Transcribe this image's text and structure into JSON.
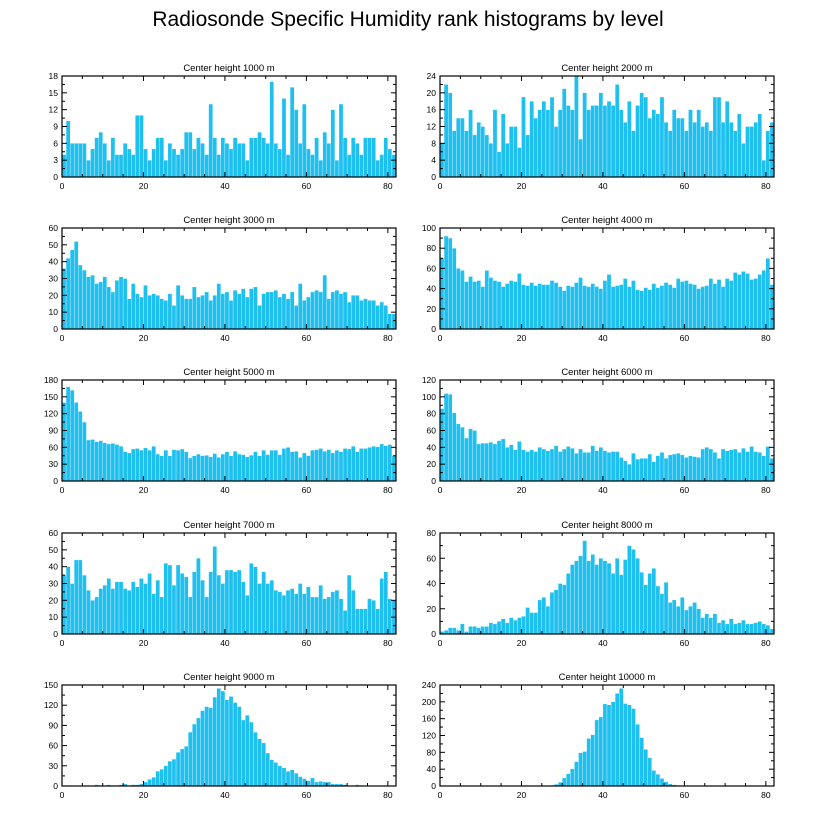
{
  "title": "Radiosonde Specific Humidity rank histograms by level",
  "colors": {
    "bar": "#1ec0f0",
    "axis": "#000000"
  },
  "chart_data": [
    {
      "type": "bar",
      "title": "Center height 1000 m",
      "x": "0..81",
      "xticks": [
        0,
        20,
        40,
        60,
        80
      ],
      "ylim": [
        0,
        18
      ],
      "yticks": [
        0,
        3,
        6,
        9,
        12,
        15,
        18
      ],
      "values": [
        4,
        10,
        6,
        6,
        6,
        6,
        3,
        5,
        7,
        8,
        6,
        3,
        7,
        4,
        4,
        6,
        5,
        4,
        11,
        11,
        5,
        3,
        5,
        7,
        7,
        3,
        6,
        5,
        4,
        5,
        8,
        8,
        5,
        7,
        6,
        4,
        13,
        7,
        4,
        7,
        6,
        5,
        7,
        6,
        6,
        3,
        7,
        7,
        8,
        7,
        6,
        17,
        6,
        5,
        14,
        4,
        16,
        12,
        6,
        13,
        5,
        4,
        7,
        3,
        8,
        6,
        12,
        3,
        13,
        7,
        4,
        7,
        6,
        4,
        7,
        7,
        7,
        3,
        4,
        7,
        5,
        4
      ]
    },
    {
      "type": "bar",
      "title": "Center height 2000 m",
      "x": "0..81",
      "xticks": [
        0,
        20,
        40,
        60,
        80
      ],
      "ylim": [
        0,
        24
      ],
      "yticks": [
        0,
        4,
        8,
        12,
        16,
        20,
        24
      ],
      "values": [
        8,
        22,
        20,
        11,
        14,
        14,
        11,
        16,
        10,
        13,
        12,
        10,
        8,
        16,
        6,
        15,
        8,
        12,
        12,
        7,
        19,
        10,
        18,
        14,
        16,
        18,
        16,
        19,
        12,
        16,
        21,
        17,
        16,
        24,
        9,
        20,
        16,
        17,
        17,
        20,
        17,
        18,
        17,
        22,
        16,
        13,
        18,
        11,
        17,
        20,
        19,
        14,
        16,
        15,
        19,
        13,
        11,
        16,
        14,
        14,
        11,
        16,
        13,
        16,
        12,
        13,
        11,
        19,
        19,
        13,
        18,
        13,
        11,
        15,
        8,
        12,
        12,
        13,
        15,
        4,
        11,
        13
      ]
    },
    {
      "type": "bar",
      "title": "Center height 3000 m",
      "x": "0..81",
      "xticks": [
        0,
        20,
        40,
        60,
        80
      ],
      "ylim": [
        0,
        60
      ],
      "yticks": [
        0,
        10,
        20,
        30,
        40,
        50,
        60
      ],
      "values": [
        36,
        42,
        47,
        52,
        38,
        35,
        31,
        32,
        27,
        28,
        31,
        25,
        22,
        29,
        31,
        30,
        18,
        27,
        21,
        19,
        26,
        20,
        21,
        20,
        18,
        17,
        21,
        14,
        26,
        20,
        18,
        18,
        25,
        19,
        20,
        22,
        17,
        20,
        27,
        21,
        22,
        17,
        23,
        21,
        24,
        19,
        24,
        25,
        14,
        21,
        22,
        22,
        23,
        19,
        21,
        18,
        22,
        14,
        27,
        17,
        19,
        22,
        23,
        22,
        32,
        18,
        22,
        23,
        21,
        22,
        16,
        20,
        20,
        17,
        18,
        17,
        17,
        14,
        16,
        14,
        9,
        9
      ]
    },
    {
      "type": "bar",
      "title": "Center height 4000 m",
      "x": "0..81",
      "xticks": [
        0,
        20,
        40,
        60,
        80
      ],
      "ylim": [
        0,
        100
      ],
      "yticks": [
        0,
        20,
        40,
        60,
        80,
        100
      ],
      "values": [
        70,
        92,
        90,
        80,
        60,
        58,
        47,
        52,
        47,
        48,
        42,
        58,
        51,
        48,
        47,
        42,
        45,
        48,
        47,
        55,
        44,
        43,
        46,
        43,
        45,
        44,
        44,
        48,
        46,
        42,
        38,
        43,
        42,
        46,
        51,
        43,
        42,
        45,
        42,
        40,
        48,
        54,
        42,
        43,
        44,
        50,
        42,
        48,
        39,
        38,
        41,
        39,
        45,
        41,
        43,
        46,
        44,
        41,
        50,
        47,
        48,
        45,
        44,
        40,
        42,
        43,
        50,
        45,
        49,
        42,
        50,
        48,
        56,
        54,
        57,
        55,
        49,
        50,
        54,
        58,
        70,
        44
      ]
    },
    {
      "type": "bar",
      "title": "Center height 5000 m",
      "x": "0..81",
      "xticks": [
        0,
        20,
        40,
        60,
        80
      ],
      "ylim": [
        0,
        180
      ],
      "yticks": [
        0,
        30,
        60,
        90,
        120,
        150,
        180
      ],
      "values": [
        140,
        168,
        162,
        140,
        124,
        105,
        73,
        74,
        70,
        72,
        68,
        66,
        67,
        65,
        62,
        52,
        50,
        57,
        58,
        55,
        59,
        55,
        62,
        48,
        45,
        55,
        45,
        56,
        55,
        57,
        52,
        41,
        45,
        48,
        45,
        46,
        43,
        49,
        42,
        48,
        52,
        45,
        53,
        48,
        47,
        43,
        46,
        52,
        45,
        55,
        47,
        55,
        55,
        47,
        58,
        60,
        52,
        53,
        42,
        50,
        45,
        55,
        56,
        58,
        53,
        56,
        50,
        55,
        52,
        58,
        57,
        62,
        52,
        58,
        58,
        60,
        62,
        61,
        66,
        63,
        65,
        45
      ]
    },
    {
      "type": "bar",
      "title": "Center height 6000 m",
      "x": "0..81",
      "xticks": [
        0,
        20,
        40,
        60,
        80
      ],
      "ylim": [
        0,
        120
      ],
      "yticks": [
        0,
        20,
        40,
        60,
        80,
        100,
        120
      ],
      "values": [
        86,
        104,
        103,
        81,
        68,
        64,
        51,
        62,
        60,
        44,
        45,
        45,
        46,
        44,
        48,
        50,
        40,
        43,
        37,
        47,
        37,
        35,
        37,
        35,
        40,
        38,
        36,
        38,
        42,
        35,
        38,
        41,
        39,
        33,
        38,
        34,
        34,
        42,
        36,
        40,
        36,
        34,
        35,
        35,
        28,
        24,
        20,
        33,
        26,
        27,
        27,
        32,
        23,
        30,
        34,
        27,
        31,
        32,
        33,
        31,
        28,
        30,
        29,
        28,
        38,
        40,
        38,
        34,
        27,
        38,
        36,
        37,
        38,
        34,
        39,
        35,
        41,
        35,
        34,
        30,
        41,
        27
      ]
    },
    {
      "type": "bar",
      "title": "Center height 7000 m",
      "x": "0..81",
      "xticks": [
        0,
        20,
        40,
        60,
        80
      ],
      "ylim": [
        0,
        60
      ],
      "yticks": [
        0,
        10,
        20,
        30,
        40,
        50,
        60
      ],
      "values": [
        35,
        40,
        30,
        44,
        44,
        35,
        26,
        20,
        22,
        27,
        29,
        33,
        27,
        31,
        31,
        27,
        26,
        31,
        28,
        33,
        30,
        36,
        24,
        32,
        22,
        42,
        41,
        29,
        41,
        36,
        34,
        22,
        37,
        45,
        32,
        22,
        37,
        52,
        35,
        30,
        38,
        38,
        37,
        38,
        31,
        23,
        42,
        40,
        30,
        37,
        30,
        32,
        26,
        25,
        23,
        26,
        27,
        24,
        30,
        24,
        28,
        22,
        22,
        29,
        21,
        22,
        25,
        26,
        21,
        14,
        35,
        26,
        15,
        15,
        15,
        21,
        20,
        15,
        33,
        37,
        21,
        20
      ]
    },
    {
      "type": "bar",
      "title": "Center height 8000 m",
      "x": "0..81",
      "xticks": [
        0,
        20,
        40,
        60,
        80
      ],
      "ylim": [
        0,
        80
      ],
      "yticks": [
        0,
        20,
        40,
        60,
        80
      ],
      "values": [
        2,
        3,
        5,
        5,
        3,
        8,
        2,
        6,
        6,
        5,
        6,
        6,
        9,
        8,
        10,
        12,
        9,
        13,
        11,
        13,
        14,
        21,
        17,
        17,
        27,
        29,
        22,
        33,
        35,
        40,
        39,
        48,
        55,
        58,
        62,
        74,
        58,
        63,
        55,
        60,
        58,
        56,
        48,
        60,
        47,
        59,
        70,
        67,
        60,
        49,
        39,
        48,
        52,
        38,
        32,
        41,
        25,
        27,
        22,
        29,
        19,
        22,
        25,
        20,
        13,
        16,
        13,
        16,
        9,
        11,
        8,
        12,
        8,
        9,
        11,
        8,
        8,
        9,
        10,
        8,
        7,
        4
      ]
    },
    {
      "type": "bar",
      "title": "Center height 9000 m",
      "x": "0..81",
      "xticks": [
        0,
        20,
        40,
        60,
        80
      ],
      "ylim": [
        0,
        150
      ],
      "yticks": [
        0,
        30,
        60,
        90,
        120,
        150
      ],
      "values": [
        0,
        1,
        0,
        0,
        0,
        0,
        0,
        0,
        2,
        1,
        1,
        2,
        1,
        1,
        2,
        3,
        0,
        2,
        2,
        3,
        6,
        10,
        13,
        22,
        25,
        30,
        37,
        40,
        50,
        55,
        59,
        80,
        92,
        101,
        112,
        118,
        116,
        132,
        145,
        141,
        128,
        133,
        124,
        118,
        98,
        105,
        95,
        80,
        70,
        64,
        49,
        39,
        35,
        30,
        27,
        22,
        24,
        19,
        14,
        11,
        8,
        12,
        6,
        7,
        6,
        6,
        3,
        3,
        3,
        2,
        0,
        1,
        2,
        1,
        0,
        0,
        0,
        0,
        0,
        0,
        0,
        0
      ]
    },
    {
      "type": "bar",
      "title": "Center height 10000 m",
      "x": "0..81",
      "xticks": [
        0,
        20,
        40,
        60,
        80
      ],
      "ylim": [
        0,
        240
      ],
      "yticks": [
        0,
        40,
        80,
        120,
        160,
        200,
        240
      ],
      "values": [
        0,
        0,
        0,
        0,
        0,
        0,
        0,
        0,
        0,
        0,
        0,
        0,
        0,
        0,
        0,
        0,
        0,
        0,
        0,
        0,
        0,
        0,
        0,
        0,
        0,
        0,
        0,
        2,
        4,
        9,
        19,
        29,
        41,
        58,
        79,
        82,
        113,
        122,
        157,
        164,
        195,
        193,
        200,
        220,
        232,
        196,
        193,
        184,
        147,
        115,
        87,
        67,
        37,
        28,
        18,
        10,
        5,
        3,
        2,
        1,
        0,
        0,
        0,
        0,
        0,
        0,
        0,
        0,
        0,
        0,
        0,
        0,
        0,
        0,
        0,
        0,
        0,
        0,
        0,
        0,
        0,
        0
      ]
    }
  ]
}
